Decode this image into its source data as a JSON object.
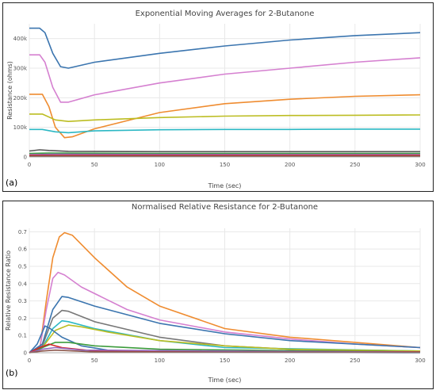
{
  "chart_data": [
    {
      "panel_label": "(a)",
      "type": "line",
      "title": "Exponential Moving Averages for 2-Butanone",
      "xlabel": "Time (sec)",
      "ylabel": "Resistance (ohms)",
      "xlim": [
        0,
        300
      ],
      "ylim": [
        0,
        450000
      ],
      "x_ticks": [
        0,
        50,
        100,
        150,
        200,
        250,
        300
      ],
      "y_ticks": [
        0,
        100000,
        200000,
        300000,
        400000
      ],
      "y_tick_labels": [
        "0",
        "100k",
        "200k",
        "300k",
        "400k"
      ],
      "grid": true,
      "series": [
        {
          "color": "#3b75af",
          "points": [
            [
              0,
              435000
            ],
            [
              8,
              435000
            ],
            [
              12,
              420000
            ],
            [
              18,
              350000
            ],
            [
              24,
              305000
            ],
            [
              30,
              300000
            ],
            [
              50,
              320000
            ],
            [
              100,
              350000
            ],
            [
              150,
              375000
            ],
            [
              200,
              395000
            ],
            [
              250,
              410000
            ],
            [
              300,
              420000
            ]
          ]
        },
        {
          "color": "#d580d0",
          "points": [
            [
              0,
              345000
            ],
            [
              8,
              345000
            ],
            [
              12,
              320000
            ],
            [
              18,
              235000
            ],
            [
              24,
              185000
            ],
            [
              30,
              185000
            ],
            [
              50,
              210000
            ],
            [
              100,
              250000
            ],
            [
              150,
              280000
            ],
            [
              200,
              300000
            ],
            [
              250,
              320000
            ],
            [
              300,
              335000
            ]
          ]
        },
        {
          "color": "#ef8c30",
          "points": [
            [
              0,
              212000
            ],
            [
              10,
              212000
            ],
            [
              15,
              170000
            ],
            [
              20,
              100000
            ],
            [
              27,
              65000
            ],
            [
              33,
              68000
            ],
            [
              50,
              95000
            ],
            [
              100,
              150000
            ],
            [
              150,
              180000
            ],
            [
              200,
              195000
            ],
            [
              250,
              205000
            ],
            [
              300,
              210000
            ]
          ]
        },
        {
          "color": "#bcbd22",
          "points": [
            [
              0,
              145000
            ],
            [
              10,
              145000
            ],
            [
              20,
              125000
            ],
            [
              30,
              120000
            ],
            [
              50,
              125000
            ],
            [
              100,
              133000
            ],
            [
              150,
              138000
            ],
            [
              200,
              140000
            ],
            [
              250,
              141000
            ],
            [
              300,
              142000
            ]
          ]
        },
        {
          "color": "#2cb8c4",
          "points": [
            [
              0,
              93000
            ],
            [
              10,
              93000
            ],
            [
              20,
              85000
            ],
            [
              30,
              82000
            ],
            [
              50,
              88000
            ],
            [
              100,
              92000
            ],
            [
              150,
              93000
            ],
            [
              200,
              93000
            ],
            [
              250,
              94000
            ],
            [
              300,
              94000
            ]
          ]
        },
        {
          "color": "#555555",
          "points": [
            [
              0,
              20000
            ],
            [
              8,
              24000
            ],
            [
              15,
              22000
            ],
            [
              30,
              19000
            ],
            [
              100,
              18000
            ],
            [
              200,
              18000
            ],
            [
              300,
              18000
            ]
          ]
        },
        {
          "color": "#3c9b3c",
          "points": [
            [
              0,
              12000
            ],
            [
              15,
              13000
            ],
            [
              100,
              12000
            ],
            [
              300,
              12000
            ]
          ]
        },
        {
          "color": "#9467bd",
          "points": [
            [
              0,
              8000
            ],
            [
              20,
              9000
            ],
            [
              300,
              8000
            ]
          ]
        },
        {
          "color": "#d62728",
          "points": [
            [
              0,
              5000
            ],
            [
              300,
              5000
            ]
          ]
        },
        {
          "color": "#8c564b",
          "points": [
            [
              0,
              3000
            ],
            [
              300,
              3000
            ]
          ]
        }
      ]
    },
    {
      "panel_label": "(b)",
      "type": "line",
      "title": "Normalised Relative Resistance for 2-Butanone",
      "xlabel": "Time (sec)",
      "ylabel": "Relative Resistance Ratio",
      "xlim": [
        0,
        300
      ],
      "ylim": [
        0,
        0.72
      ],
      "x_ticks": [
        0,
        50,
        100,
        150,
        200,
        250,
        300
      ],
      "y_ticks": [
        0,
        0.1,
        0.2,
        0.3,
        0.4,
        0.5,
        0.6,
        0.7
      ],
      "y_tick_labels": [
        "0",
        "0.1",
        "0.2",
        "0.3",
        "0.4",
        "0.5",
        "0.6",
        "0.7"
      ],
      "grid": true,
      "series": [
        {
          "color": "#ef8c30",
          "points": [
            [
              0,
              0
            ],
            [
              8,
              0.02
            ],
            [
              13,
              0.3
            ],
            [
              18,
              0.55
            ],
            [
              23,
              0.67
            ],
            [
              27,
              0.695
            ],
            [
              33,
              0.68
            ],
            [
              50,
              0.55
            ],
            [
              75,
              0.38
            ],
            [
              100,
              0.27
            ],
            [
              150,
              0.14
            ],
            [
              200,
              0.09
            ],
            [
              250,
              0.06
            ],
            [
              300,
              0.03
            ]
          ]
        },
        {
          "color": "#d580d0",
          "points": [
            [
              0,
              0
            ],
            [
              8,
              0.02
            ],
            [
              13,
              0.25
            ],
            [
              18,
              0.43
            ],
            [
              22,
              0.465
            ],
            [
              27,
              0.45
            ],
            [
              40,
              0.38
            ],
            [
              75,
              0.25
            ],
            [
              100,
              0.19
            ],
            [
              150,
              0.12
            ],
            [
              200,
              0.08
            ],
            [
              250,
              0.05
            ],
            [
              300,
              0.03
            ]
          ]
        },
        {
          "color": "#3b75af",
          "points": [
            [
              0,
              0
            ],
            [
              10,
              0.05
            ],
            [
              18,
              0.25
            ],
            [
              25,
              0.325
            ],
            [
              30,
              0.32
            ],
            [
              50,
              0.27
            ],
            [
              100,
              0.17
            ],
            [
              150,
              0.11
            ],
            [
              200,
              0.07
            ],
            [
              250,
              0.05
            ],
            [
              300,
              0.03
            ]
          ]
        },
        {
          "color": "#777777",
          "points": [
            [
              0,
              0
            ],
            [
              10,
              0.04
            ],
            [
              18,
              0.2
            ],
            [
              25,
              0.245
            ],
            [
              30,
              0.24
            ],
            [
              50,
              0.18
            ],
            [
              100,
              0.09
            ],
            [
              150,
              0.04
            ],
            [
              200,
              0.02
            ],
            [
              300,
              0.01
            ]
          ]
        },
        {
          "color": "#2cb8c4",
          "points": [
            [
              0,
              0
            ],
            [
              10,
              0.03
            ],
            [
              18,
              0.14
            ],
            [
              25,
              0.185
            ],
            [
              30,
              0.18
            ],
            [
              50,
              0.14
            ],
            [
              100,
              0.07
            ],
            [
              150,
              0.03
            ],
            [
              300,
              0.01
            ]
          ]
        },
        {
          "color": "#bcbd22",
          "points": [
            [
              0,
              0
            ],
            [
              10,
              0.03
            ],
            [
              20,
              0.13
            ],
            [
              30,
              0.16
            ],
            [
              40,
              0.15
            ],
            [
              60,
              0.12
            ],
            [
              100,
              0.07
            ],
            [
              150,
              0.04
            ],
            [
              200,
              0.02
            ],
            [
              300,
              0.01
            ]
          ]
        },
        {
          "color": "#3b75af",
          "points": [
            [
              0,
              0
            ],
            [
              6,
              0.05
            ],
            [
              12,
              0.155
            ],
            [
              16,
              0.14
            ],
            [
              25,
              0.09
            ],
            [
              40,
              0.04
            ],
            [
              60,
              0.015
            ],
            [
              100,
              0.005
            ],
            [
              300,
              0.0
            ]
          ]
        },
        {
          "color": "#3c9b3c",
          "points": [
            [
              0,
              0
            ],
            [
              10,
              0.03
            ],
            [
              20,
              0.06
            ],
            [
              30,
              0.06
            ],
            [
              50,
              0.04
            ],
            [
              100,
              0.02
            ],
            [
              300,
              0.005
            ]
          ]
        },
        {
          "color": "#d62728",
          "points": [
            [
              0,
              0
            ],
            [
              8,
              0.03
            ],
            [
              15,
              0.05
            ],
            [
              25,
              0.03
            ],
            [
              50,
              0.01
            ],
            [
              300,
              0.005
            ]
          ]
        },
        {
          "color": "#9467bd",
          "points": [
            [
              0,
              0
            ],
            [
              10,
              0.02
            ],
            [
              20,
              0.03
            ],
            [
              40,
              0.015
            ],
            [
              300,
              0.003
            ]
          ]
        },
        {
          "color": "#8c564b",
          "points": [
            [
              0,
              0
            ],
            [
              10,
              0.01
            ],
            [
              20,
              0.015
            ],
            [
              50,
              0.005
            ],
            [
              300,
              0.002
            ]
          ]
        }
      ]
    }
  ]
}
